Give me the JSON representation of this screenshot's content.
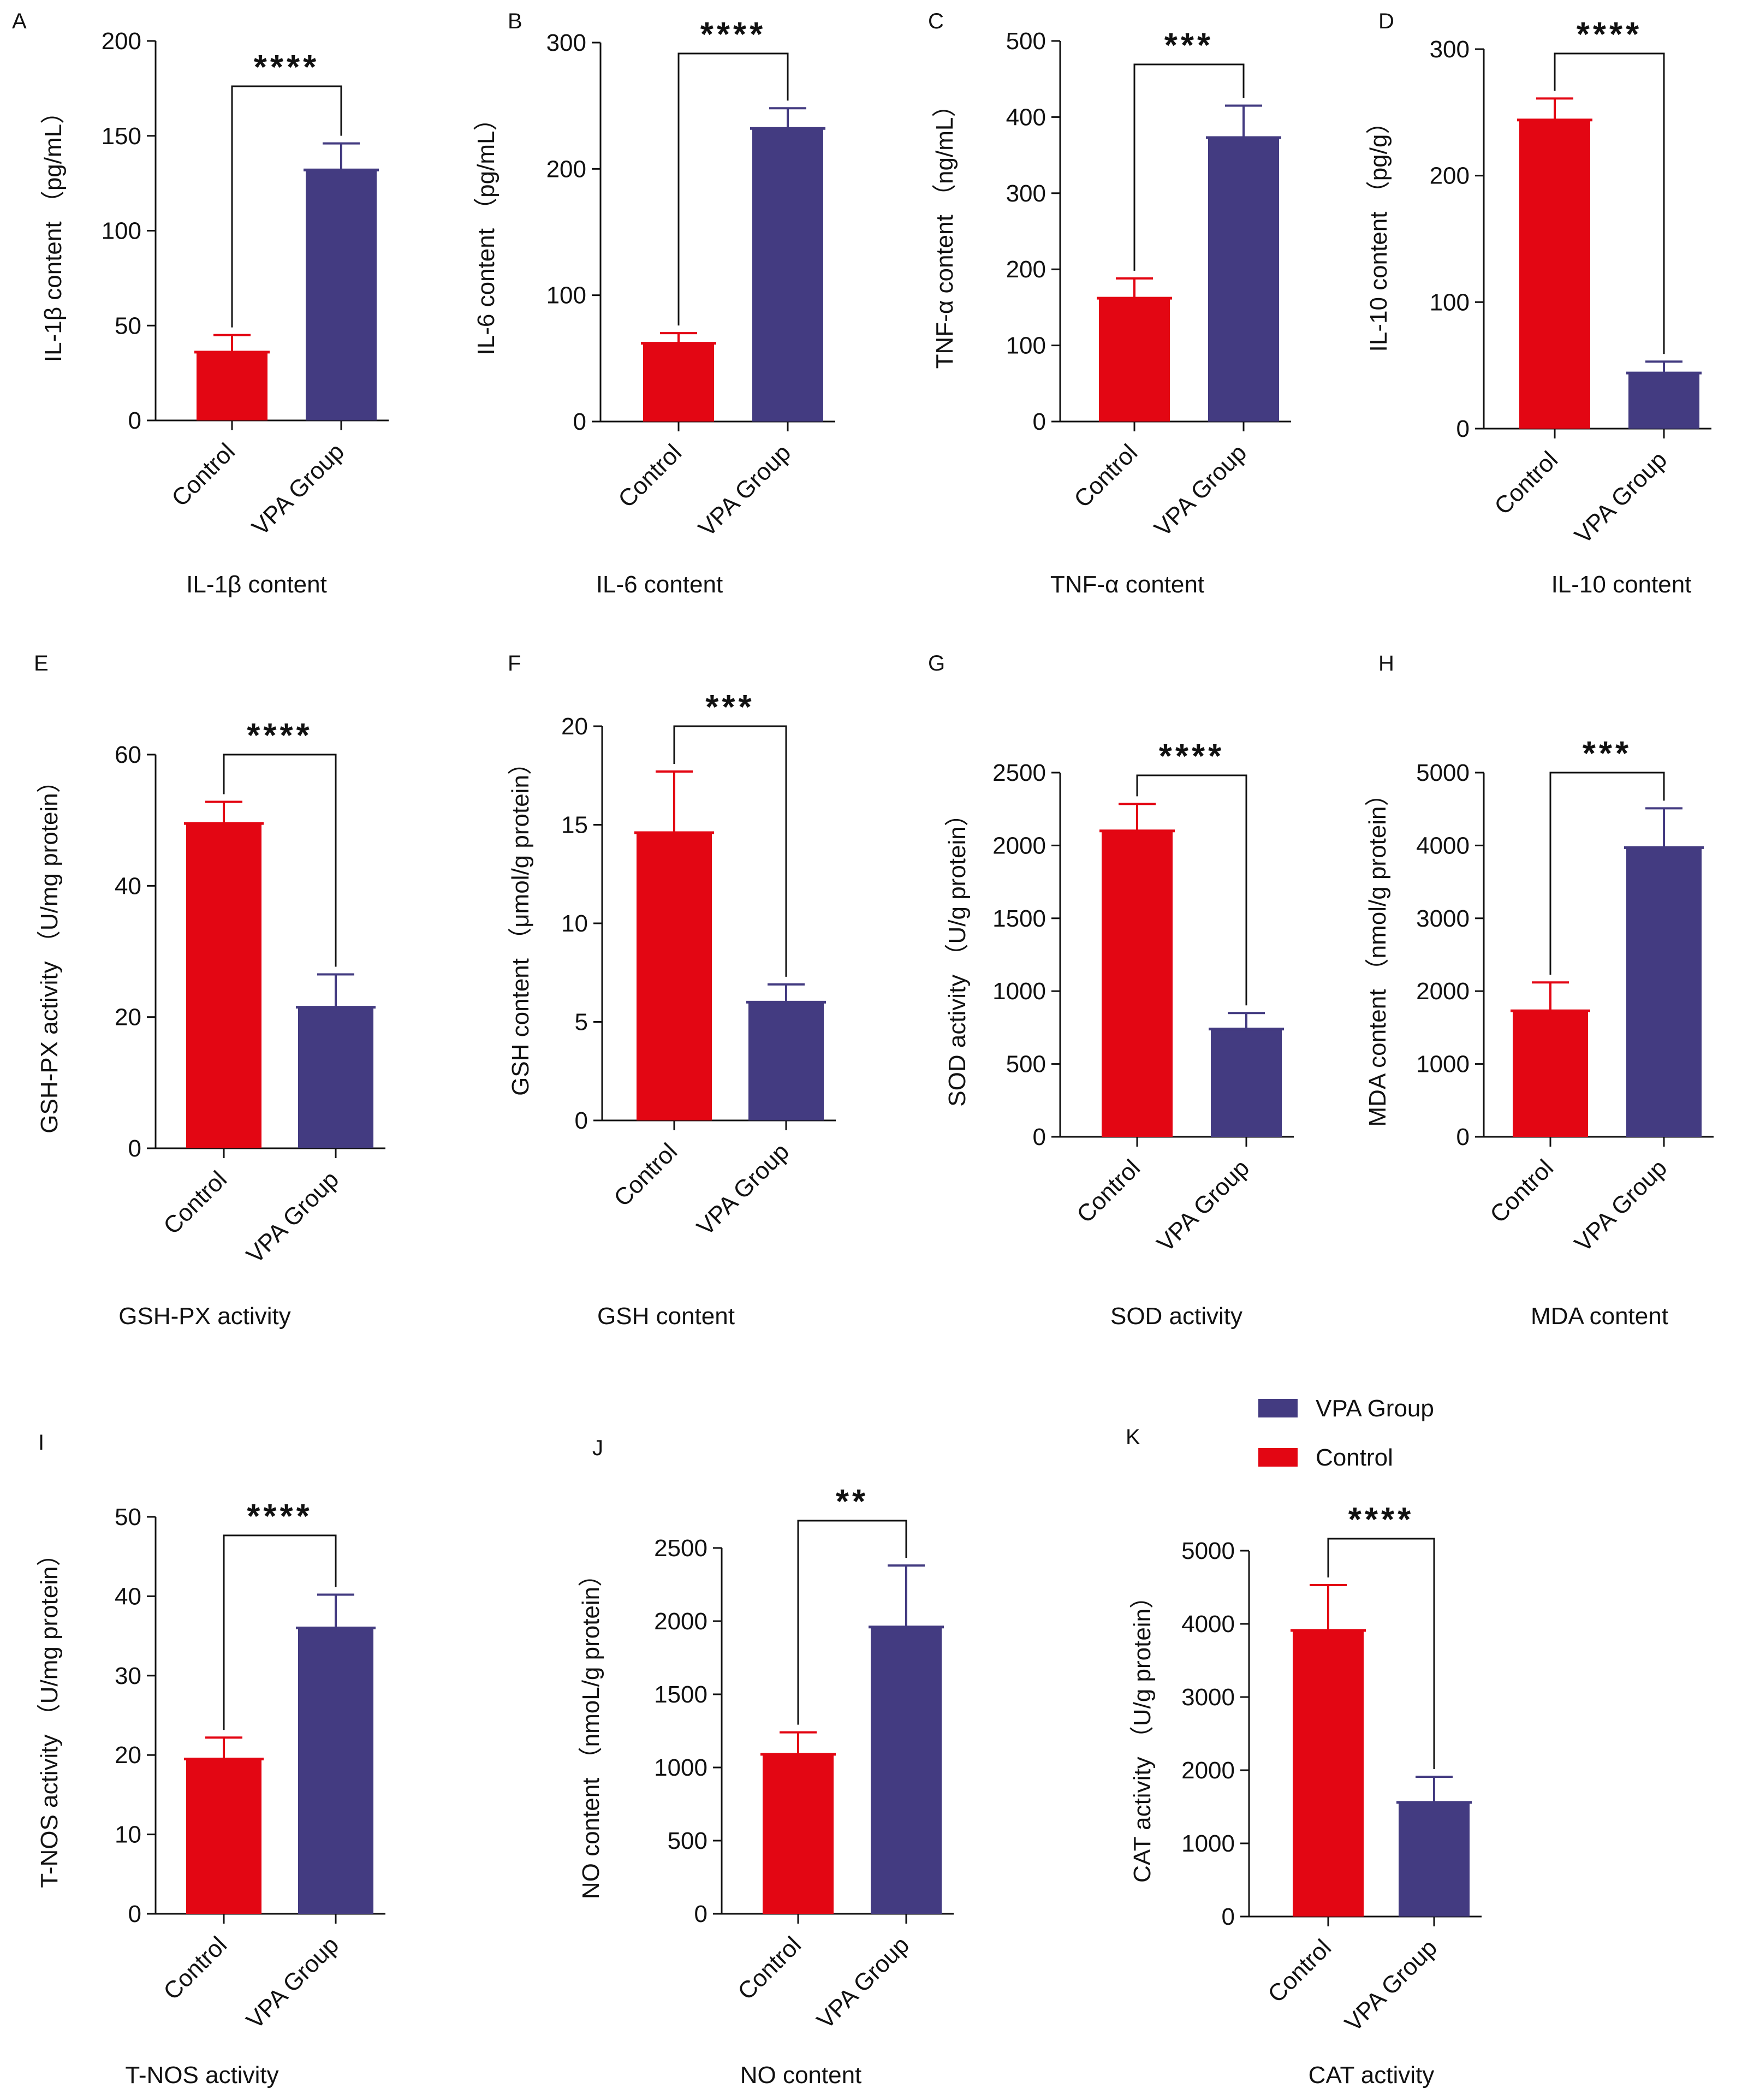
{
  "colors": {
    "control": "#e30613",
    "vpa": "#433b81",
    "axis": "#111111"
  },
  "chart_data": [
    {
      "id": "A",
      "letter": "A",
      "type": "bar",
      "caption": "IL-1β content",
      "ylabel": "IL-1β content （pg/mL）",
      "categories": [
        "Control",
        "VPA Group"
      ],
      "values": [
        36,
        132
      ],
      "errors": [
        9,
        14
      ],
      "ylim": [
        0,
        200
      ],
      "yticks": [
        0,
        50,
        100,
        150,
        200
      ],
      "significance": "****"
    },
    {
      "id": "B",
      "letter": "B",
      "type": "bar",
      "caption": "IL-6 content",
      "ylabel": "IL-6 content （pg/mL）",
      "categories": [
        "Control",
        "VPA Group"
      ],
      "values": [
        62,
        232
      ],
      "errors": [
        8,
        16
      ],
      "ylim": [
        0,
        300
      ],
      "yticks": [
        0,
        100,
        200,
        300
      ],
      "significance": "****"
    },
    {
      "id": "C",
      "letter": "C",
      "type": "bar",
      "caption": "TNF-α content",
      "ylabel": "TNF-α content （ng/mL）",
      "categories": [
        "Control",
        "VPA Group"
      ],
      "values": [
        162,
        373
      ],
      "errors": [
        26,
        42
      ],
      "ylim": [
        0,
        500
      ],
      "yticks": [
        0,
        100,
        200,
        300,
        400,
        500
      ],
      "significance": "***"
    },
    {
      "id": "D",
      "letter": "D",
      "type": "bar",
      "caption": "IL-10 content",
      "ylabel": "IL-10 content （pg/g）",
      "categories": [
        "Control",
        "VPA Group"
      ],
      "values": [
        244,
        44
      ],
      "errors": [
        17,
        9
      ],
      "ylim": [
        0,
        300
      ],
      "yticks": [
        0,
        100,
        200,
        300
      ],
      "significance": "****"
    },
    {
      "id": "E",
      "letter": "E",
      "type": "bar",
      "caption": "GSH-PX activity",
      "ylabel": "GSH-PX activity （U/mg protein）",
      "categories": [
        "Control",
        "VPA Group"
      ],
      "values": [
        49.5,
        21.5
      ],
      "errors": [
        3.3,
        5
      ],
      "ylim": [
        0,
        60
      ],
      "yticks": [
        0,
        20,
        40,
        60
      ],
      "significance": "****"
    },
    {
      "id": "F",
      "letter": "F",
      "type": "bar",
      "caption": "GSH content",
      "ylabel": "GSH content （μmol/g protein）",
      "categories": [
        "Control",
        "VPA Group"
      ],
      "values": [
        14.6,
        6.0
      ],
      "errors": [
        3.1,
        0.9
      ],
      "ylim": [
        0,
        20
      ],
      "yticks": [
        0,
        5,
        10,
        15,
        20
      ],
      "significance": "***"
    },
    {
      "id": "G",
      "letter": "G",
      "type": "bar",
      "caption": "SOD activity",
      "ylabel": "SOD activity （U/g protein）",
      "categories": [
        "Control",
        "VPA Group"
      ],
      "values": [
        2100,
        740
      ],
      "errors": [
        185,
        110
      ],
      "ylim": [
        0,
        2500
      ],
      "yticks": [
        0,
        500,
        1000,
        1500,
        2000,
        2500
      ],
      "significance": "****"
    },
    {
      "id": "H",
      "letter": "H",
      "type": "bar",
      "caption": "MDA content",
      "ylabel": "MDA content （nmol/g protein）",
      "categories": [
        "Control",
        "VPA Group"
      ],
      "values": [
        1730,
        3970
      ],
      "errors": [
        390,
        540
      ],
      "ylim": [
        0,
        5000
      ],
      "yticks": [
        0,
        1000,
        2000,
        3000,
        4000,
        5000
      ],
      "significance": "***"
    },
    {
      "id": "I",
      "letter": "I",
      "type": "bar",
      "caption": "T-NOS activity",
      "ylabel": "T-NOS activity （U/mg protein）",
      "categories": [
        "Control",
        "VPA Group"
      ],
      "values": [
        19.5,
        36
      ],
      "errors": [
        2.7,
        4.2
      ],
      "ylim": [
        0,
        50
      ],
      "yticks": [
        0,
        10,
        20,
        30,
        40,
        50
      ],
      "significance": "****"
    },
    {
      "id": "J",
      "letter": "J",
      "type": "bar",
      "caption": "NO content",
      "ylabel": "NO content （nmoL/g protein）",
      "categories": [
        "Control",
        "VPA Group"
      ],
      "values": [
        1090,
        1960
      ],
      "errors": [
        150,
        420
      ],
      "ylim": [
        0,
        2500
      ],
      "yticks": [
        0,
        500,
        1000,
        1500,
        2000,
        2500
      ],
      "significance": "**"
    },
    {
      "id": "K",
      "letter": "K",
      "type": "bar",
      "caption": "CAT activity",
      "ylabel": "CAT activity （U/g protein）",
      "categories": [
        "Control",
        "VPA Group"
      ],
      "values": [
        3910,
        1560
      ],
      "errors": [
        620,
        350
      ],
      "ylim": [
        0,
        5000
      ],
      "yticks": [
        0,
        1000,
        2000,
        3000,
        4000,
        5000
      ],
      "significance": "****"
    }
  ],
  "legend": [
    {
      "label": "VPA Group",
      "color": "#433b81"
    },
    {
      "label": "Control",
      "color": "#e30613"
    }
  ]
}
